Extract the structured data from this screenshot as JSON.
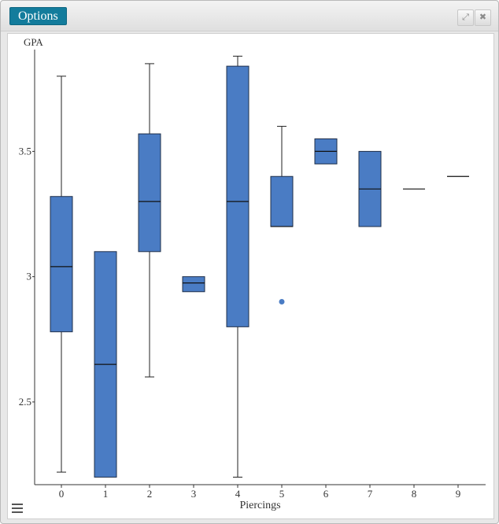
{
  "window": {
    "options_label": "Options",
    "maximize_icon": "maximize-icon",
    "close_icon": "close-icon"
  },
  "menu_icon": "hamburger-menu-icon",
  "colors": {
    "box_fill": "#4a7cc4",
    "box_stroke": "#1f2f4a",
    "outlier": "#4a7cc4",
    "options_bg": "#137c9c"
  },
  "chart_data": {
    "type": "boxplot",
    "xlabel": "Piercings",
    "ylabel": "GPA",
    "categories": [
      "0",
      "1",
      "2",
      "3",
      "4",
      "5",
      "6",
      "7",
      "8",
      "9"
    ],
    "ylim": [
      2.17,
      3.9
    ],
    "yticks": [
      "2.5",
      "3",
      "3.5"
    ],
    "boxes": [
      {
        "category": "0",
        "min": 2.22,
        "q1": 2.78,
        "median": 3.04,
        "q3": 3.32,
        "max": 3.8
      },
      {
        "category": "1",
        "min": 2.2,
        "q1": 2.2,
        "median": 2.65,
        "q3": 3.1,
        "max": 3.1
      },
      {
        "category": "2",
        "min": 2.6,
        "q1": 3.1,
        "median": 3.3,
        "q3": 3.57,
        "max": 3.85
      },
      {
        "category": "3",
        "min": 2.94,
        "q1": 2.94,
        "median": 2.975,
        "q3": 3.0,
        "max": 3.0
      },
      {
        "category": "4",
        "min": 2.2,
        "q1": 2.8,
        "median": 3.3,
        "q3": 3.84,
        "max": 3.88
      },
      {
        "category": "5",
        "min": 3.2,
        "q1": 3.2,
        "median": 3.2,
        "q3": 3.4,
        "max": 3.6
      },
      {
        "category": "6",
        "min": 3.45,
        "q1": 3.45,
        "median": 3.5,
        "q3": 3.55,
        "max": 3.55
      },
      {
        "category": "7",
        "min": 3.2,
        "q1": 3.2,
        "median": 3.35,
        "q3": 3.5,
        "max": 3.5
      },
      {
        "category": "8",
        "min": 3.35,
        "q1": 3.35,
        "median": 3.35,
        "q3": 3.35,
        "max": 3.35
      },
      {
        "category": "9",
        "min": 3.4,
        "q1": 3.4,
        "median": 3.4,
        "q3": 3.4,
        "max": 3.4
      }
    ],
    "outliers": [
      {
        "category": "5",
        "value": 2.9
      }
    ],
    "grid": false,
    "legend": "none"
  }
}
